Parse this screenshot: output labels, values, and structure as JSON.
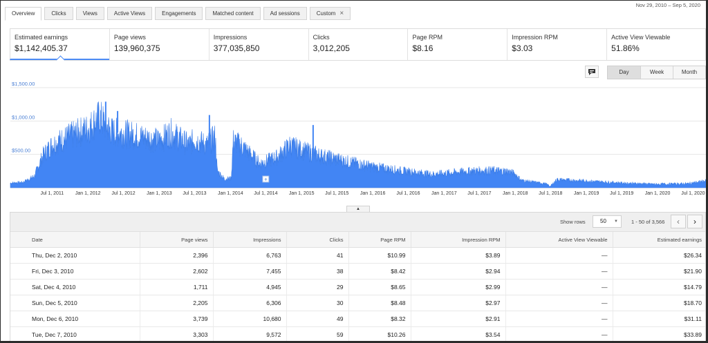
{
  "tabs": [
    {
      "label": "Overview",
      "active": true
    },
    {
      "label": "Clicks"
    },
    {
      "label": "Views"
    },
    {
      "label": "Active Views"
    },
    {
      "label": "Engagements"
    },
    {
      "label": "Matched content"
    },
    {
      "label": "Ad sessions"
    },
    {
      "label": "Custom",
      "closable": true
    }
  ],
  "date_range": "Nov 29, 2010 – Sep 5, 2020",
  "metrics": [
    {
      "label": "Estimated earnings",
      "value": "$1,142,405.37",
      "selected": true
    },
    {
      "label": "Page views",
      "value": "139,960,375"
    },
    {
      "label": "Impressions",
      "value": "377,035,850"
    },
    {
      "label": "Clicks",
      "value": "3,012,205"
    },
    {
      "label": "Page RPM",
      "value": "$8.16"
    },
    {
      "label": "Impression RPM",
      "value": "$3.03"
    },
    {
      "label": "Active View Viewable",
      "value": "51.86%"
    }
  ],
  "toolbar": {
    "annotation_icon": "comment-icon",
    "granularity": [
      "Day",
      "Week",
      "Month"
    ],
    "selected_granularity": "Day"
  },
  "chart_data": {
    "type": "area",
    "series": [
      {
        "name": "Estimated earnings",
        "color": "#4285f4",
        "points": [
          [
            "2010-11-29",
            70
          ],
          [
            "2011-02-01",
            80
          ],
          [
            "2011-04-01",
            170
          ],
          [
            "2011-05-15",
            480
          ],
          [
            "2011-07-01",
            640
          ],
          [
            "2011-10-01",
            770
          ],
          [
            "2012-01-01",
            880
          ],
          [
            "2012-03-01",
            1050
          ],
          [
            "2012-05-01",
            840
          ],
          [
            "2012-09-01",
            780
          ],
          [
            "2013-01-01",
            700
          ],
          [
            "2013-03-01",
            820
          ],
          [
            "2013-06-01",
            640
          ],
          [
            "2013-07-01",
            720
          ],
          [
            "2013-09-01",
            640
          ],
          [
            "2013-10-15",
            760
          ],
          [
            "2013-10-25",
            250
          ],
          [
            "2013-12-01",
            130
          ],
          [
            "2014-01-05",
            140
          ],
          [
            "2014-01-15",
            700
          ],
          [
            "2014-03-01",
            620
          ],
          [
            "2014-06-01",
            360
          ],
          [
            "2014-09-01",
            460
          ],
          [
            "2014-11-01",
            630
          ],
          [
            "2015-01-01",
            560
          ],
          [
            "2015-04-01",
            480
          ],
          [
            "2015-08-01",
            400
          ],
          [
            "2016-01-01",
            310
          ],
          [
            "2016-06-01",
            250
          ],
          [
            "2016-11-01",
            200
          ],
          [
            "2017-06-01",
            250
          ],
          [
            "2017-09-01",
            255
          ],
          [
            "2017-12-01",
            240
          ],
          [
            "2018-01-01",
            200
          ],
          [
            "2018-02-01",
            110
          ],
          [
            "2018-06-01",
            60
          ],
          [
            "2018-07-01",
            20
          ],
          [
            "2018-08-01",
            120
          ],
          [
            "2019-01-01",
            100
          ],
          [
            "2019-07-01",
            70
          ],
          [
            "2020-01-01",
            50
          ],
          [
            "2020-06-01",
            60
          ],
          [
            "2020-09-05",
            100
          ]
        ],
        "spikes": [
          [
            "2012-04-01",
            1290
          ],
          [
            "2012-06-01",
            1150
          ],
          [
            "2013-09-15",
            1090
          ],
          [
            "2015-03-01",
            940
          ]
        ]
      }
    ],
    "x_ticks": [
      "Jul 1, 2011",
      "Jan 1, 2012",
      "Jul 1, 2012",
      "Jan 1, 2013",
      "Jul 1, 2013",
      "Jan 1, 2014",
      "Jul 1, 2014",
      "Jan 1, 2015",
      "Jul 1, 2015",
      "Jan 1, 2016",
      "Jul 1, 2016",
      "Jan 1, 2017",
      "Jul 1, 2017",
      "Jan 1, 2018",
      "Jul 1, 2018",
      "Jan 1, 2019",
      "Jul 1, 2019",
      "Jan 1, 2020",
      "Jul 1, 2020"
    ],
    "y_ticks": [
      "$500.00",
      "$1,000.00",
      "$1,500.00"
    ],
    "y_tick_values": [
      500,
      1000,
      1500
    ],
    "ylim": [
      0,
      1500
    ],
    "xlim": [
      "2010-11-29",
      "2020-09-05"
    ],
    "grid": true,
    "annotation_marker": "2014-07-01"
  },
  "table": {
    "show_rows_label": "Show rows",
    "rows_per_page": "50",
    "range_text": "1 - 50 of 3,566",
    "columns": [
      "Date",
      "Page views",
      "Impressions",
      "Clicks",
      "Page RPM",
      "Impression RPM",
      "Active View Viewable",
      "Estimated earnings"
    ],
    "rows": [
      [
        "Thu, Dec 2, 2010",
        "2,396",
        "6,763",
        "41",
        "$10.99",
        "$3.89",
        "—",
        "$26.34"
      ],
      [
        "Fri, Dec 3, 2010",
        "2,602",
        "7,455",
        "38",
        "$8.42",
        "$2.94",
        "—",
        "$21.90"
      ],
      [
        "Sat, Dec 4, 2010",
        "1,711",
        "4,945",
        "29",
        "$8.65",
        "$2.99",
        "—",
        "$14.79"
      ],
      [
        "Sun, Dec 5, 2010",
        "2,205",
        "6,306",
        "30",
        "$8.48",
        "$2.97",
        "—",
        "$18.70"
      ],
      [
        "Mon, Dec 6, 2010",
        "3,739",
        "10,680",
        "49",
        "$8.32",
        "$2.91",
        "—",
        "$31.11"
      ],
      [
        "Tue, Dec 7, 2010",
        "3,303",
        "9,572",
        "59",
        "$10.26",
        "$3.54",
        "—",
        "$33.89"
      ]
    ]
  }
}
